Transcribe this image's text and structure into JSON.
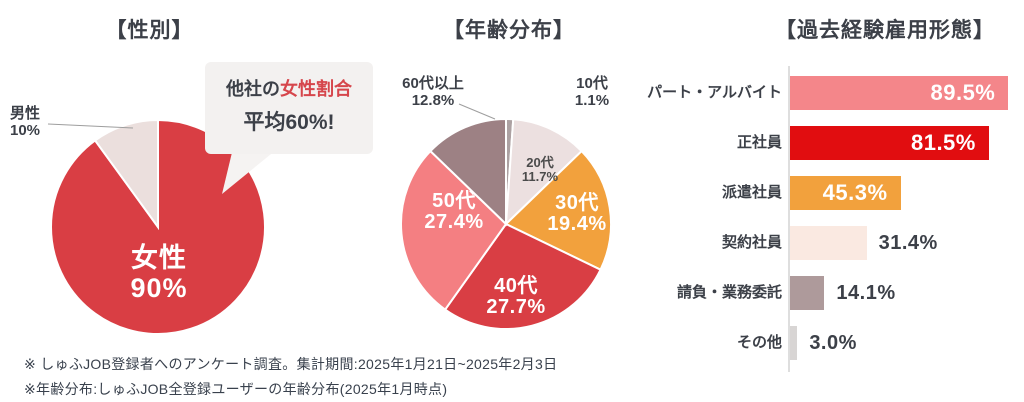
{
  "chart_data": [
    {
      "id": "gender",
      "type": "pie",
      "title": "【性別】",
      "slices": [
        {
          "label": "女性",
          "value": 90,
          "pct": "90%",
          "color": "#d93e44",
          "label_position": "inside"
        },
        {
          "label": "男性",
          "value": 10,
          "pct": "10%",
          "color": "#ebdfdd",
          "label_position": "outside"
        }
      ],
      "callout": {
        "prefix": "他社の",
        "highlight": "女性割合",
        "line2": "平均60%!",
        "highlight_color": "#d6464c",
        "bg": "#f3f1f0"
      }
    },
    {
      "id": "age",
      "type": "pie",
      "title": "【年齢分布】",
      "slices": [
        {
          "label": "10代",
          "value": 1.1,
          "pct": "1.1%",
          "color": "#aca1a2",
          "label_position": "outside"
        },
        {
          "label": "20代",
          "value": 11.7,
          "pct": "11.7%",
          "color": "#ece0e0",
          "label_position": "inside-dark"
        },
        {
          "label": "30代",
          "value": 19.4,
          "pct": "19.4%",
          "color": "#f2a13d",
          "label_position": "inside"
        },
        {
          "label": "40代",
          "value": 27.7,
          "pct": "27.7%",
          "color": "#d93e44",
          "label_position": "inside"
        },
        {
          "label": "50代",
          "value": 27.4,
          "pct": "27.4%",
          "color": "#f47f82",
          "label_position": "inside"
        },
        {
          "label": "60代以上",
          "value": 12.8,
          "pct": "12.8%",
          "color": "#9d8184",
          "label_position": "outside"
        }
      ]
    },
    {
      "id": "employment",
      "type": "bar",
      "title": "【過去経験雇用形態】",
      "x_max": 100,
      "bars": [
        {
          "label": "パート・アルバイト",
          "value": 89.5,
          "pct": "89.5%",
          "color": "#f4868a",
          "value_inside": true
        },
        {
          "label": "正社員",
          "value": 81.5,
          "pct": "81.5%",
          "color": "#e10d10",
          "value_inside": true
        },
        {
          "label": "派遣社員",
          "value": 45.3,
          "pct": "45.3%",
          "color": "#f2a13d",
          "value_inside": true
        },
        {
          "label": "契約社員",
          "value": 31.4,
          "pct": "31.4%",
          "color": "#fae9e1",
          "value_inside": false
        },
        {
          "label": "請負・業務委託",
          "value": 14.1,
          "pct": "14.1%",
          "color": "#ae9a9b",
          "value_inside": false
        },
        {
          "label": "その他",
          "value": 3.0,
          "pct": "3.0%",
          "color": "#d8d5d4",
          "value_inside": false
        }
      ]
    }
  ],
  "footnotes": [
    "※ しゅふJOB登録者へのアンケート調査。集計期間:2025年1月21日~2025年2月3日",
    "※年齢分布:しゅふJOB全登録ユーザーの年齢分布(2025年1月時点)"
  ],
  "colors": {
    "text": "#3c4048",
    "accent_red": "#d93e44",
    "axis_line": "#dedede",
    "leader_line": "#9e9e9e",
    "callout_bg": "#f3f1f0"
  }
}
